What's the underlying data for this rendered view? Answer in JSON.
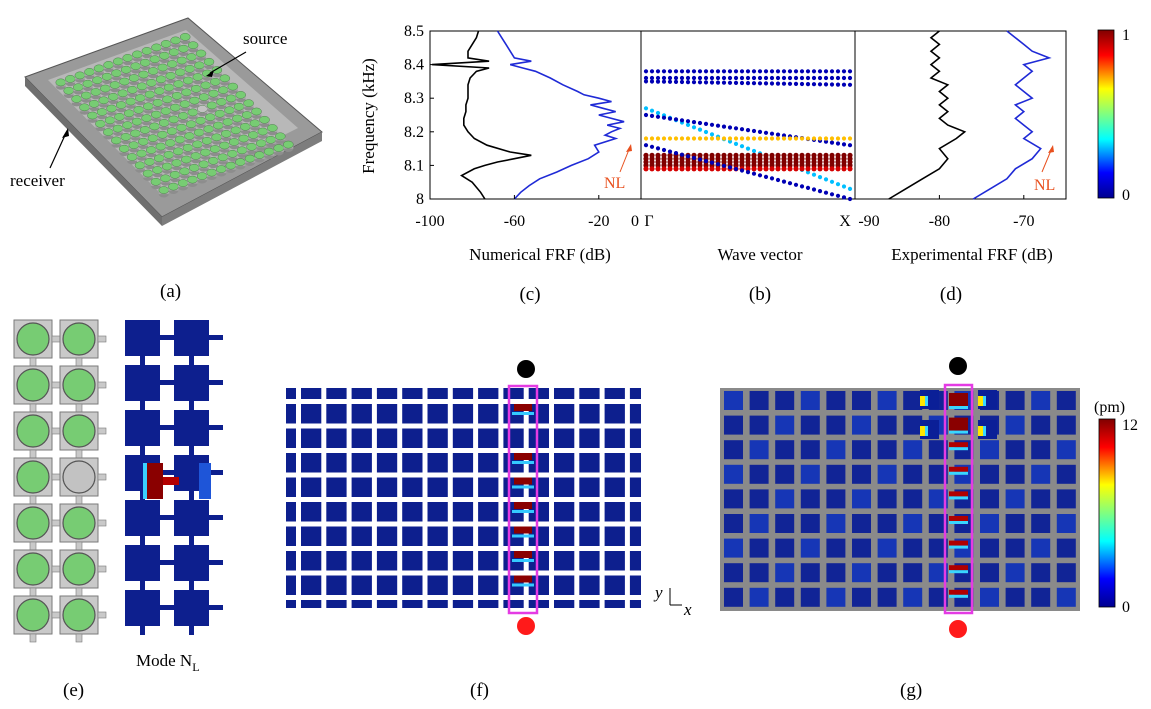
{
  "panels": {
    "a": {
      "label": "(a)",
      "source": "source",
      "receiver": "receiver"
    },
    "b": {
      "label": "(b)",
      "xlabel": "Wave vector",
      "gamma": "Γ",
      "x_point": "X"
    },
    "c": {
      "label": "(c)",
      "xlabel": "Numerical FRF (dB)",
      "ylabel": "Frequency (kHz)",
      "annotation": "NL"
    },
    "d": {
      "label": "(d)",
      "xlabel": "Experimental FRF (dB)",
      "annotation": "NL"
    },
    "e": {
      "label": "(e)",
      "mode_label": "Mode N",
      "mode_sub": "L"
    },
    "f": {
      "label": "(f)",
      "axis_y": "y",
      "axis_x": "x"
    },
    "g": {
      "label": "(g)"
    }
  },
  "colorbars": {
    "top": {
      "max": "1",
      "min": "0"
    },
    "bottom": {
      "unit": "(pm)",
      "max": "12",
      "min": "0"
    }
  },
  "colors": {
    "unit_green": "#77cc73",
    "defect_gray": "#c2c2c2",
    "field_blue": "#0d1f8e",
    "highlight_magenta": "#e43be4",
    "numerical_line": "#000000",
    "experimental_line": "#1f2ad6",
    "annotation_red": "#e8501e"
  },
  "chart_data": [
    {
      "type": "line",
      "title": "",
      "xlabel": "Numerical FRF (dB)",
      "ylabel": "Frequency (kHz)",
      "xlim": [
        -100,
        0
      ],
      "ylim": [
        8,
        8.5
      ],
      "xticks": [
        "-100",
        "-60",
        "-20",
        "0"
      ],
      "yticks": [
        "8",
        "8.1",
        "8.2",
        "8.3",
        "8.4",
        "8.5"
      ],
      "series": [
        {
          "color": "#000000",
          "y": [
            8.0,
            8.02,
            8.05,
            8.07,
            8.09,
            8.1,
            8.11,
            8.12,
            8.13,
            8.14,
            8.16,
            8.18,
            8.2,
            8.22,
            8.24,
            8.26,
            8.28,
            8.3,
            8.32,
            8.34,
            8.36,
            8.38,
            8.39,
            8.4,
            8.41,
            8.42,
            8.44,
            8.46,
            8.48,
            8.5
          ],
          "x": [
            -74,
            -76,
            -80,
            -85,
            -79,
            -74,
            -68,
            -60,
            -52,
            -62,
            -73,
            -79,
            -82,
            -84,
            -84,
            -83,
            -83,
            -82,
            -82,
            -82,
            -81,
            -78,
            -72,
            -99,
            -72,
            -82,
            -82,
            -80,
            -78,
            -77
          ]
        },
        {
          "color": "#1f2ad6",
          "y": [
            8.0,
            8.02,
            8.04,
            8.06,
            8.08,
            8.1,
            8.12,
            8.14,
            8.16,
            8.18,
            8.19,
            8.2,
            8.21,
            8.22,
            8.23,
            8.24,
            8.25,
            8.26,
            8.27,
            8.28,
            8.29,
            8.3,
            8.31,
            8.32,
            8.34,
            8.36,
            8.38,
            8.39,
            8.4,
            8.41,
            8.42,
            8.44,
            8.46,
            8.48,
            8.5
          ],
          "x": [
            -60,
            -57,
            -53,
            -48,
            -40,
            -33,
            -25,
            -20,
            -22,
            -12,
            -17,
            -14,
            -10,
            -16,
            -8,
            -14,
            -20,
            -12,
            -18,
            -24,
            -14,
            -20,
            -27,
            -30,
            -37,
            -43,
            -50,
            -56,
            -62,
            -52,
            -60,
            -62,
            -64,
            -66,
            -68
          ]
        }
      ]
    },
    {
      "type": "scatter",
      "title": "",
      "xlabel": "Wave vector",
      "xticks": [
        "Γ",
        "X"
      ],
      "xlim": [
        0,
        1
      ],
      "ylim": [
        8,
        8.5
      ],
      "colorscale": "jet",
      "colorbar": {
        "min": 0,
        "max": 1
      },
      "bands": [
        {
          "start": 8.38,
          "end": 8.38,
          "weight": 0.05
        },
        {
          "start": 8.36,
          "end": 8.36,
          "weight": 0.05
        },
        {
          "start": 8.35,
          "end": 8.34,
          "weight": 0.05
        },
        {
          "start": 8.27,
          "end": 8.03,
          "weight": 0.3
        },
        {
          "start": 8.25,
          "end": 8.16,
          "weight": 0.05
        },
        {
          "start": 8.18,
          "end": 8.18,
          "weight": 0.7
        },
        {
          "start": 8.13,
          "end": 8.13,
          "weight": 1.0
        },
        {
          "start": 8.12,
          "end": 8.12,
          "weight": 1.0
        },
        {
          "start": 8.11,
          "end": 8.11,
          "weight": 1.0
        },
        {
          "start": 8.1,
          "end": 8.1,
          "weight": 1.0
        },
        {
          "start": 8.09,
          "end": 8.09,
          "weight": 0.9
        },
        {
          "start": 8.16,
          "end": 8.0,
          "weight": 0.05
        }
      ]
    },
    {
      "type": "line",
      "title": "",
      "xlabel": "Experimental FRF (dB)",
      "xlim": [
        -90,
        -65
      ],
      "ylim": [
        8,
        8.5
      ],
      "xticks": [
        "-90",
        "-80",
        "-70"
      ],
      "series": [
        {
          "color": "#000000",
          "y": [
            8.0,
            8.03,
            8.06,
            8.09,
            8.12,
            8.15,
            8.18,
            8.2,
            8.22,
            8.24,
            8.26,
            8.28,
            8.3,
            8.32,
            8.34,
            8.36,
            8.38,
            8.4,
            8.42,
            8.44,
            8.46,
            8.48,
            8.5
          ],
          "x": [
            -86,
            -84,
            -82,
            -80,
            -79,
            -80,
            -78,
            -77,
            -79,
            -80,
            -79,
            -80,
            -79,
            -80,
            -79,
            -81,
            -80,
            -81,
            -80,
            -81,
            -80,
            -81,
            -80
          ]
        },
        {
          "color": "#1f2ad6",
          "y": [
            8.0,
            8.03,
            8.06,
            8.09,
            8.12,
            8.15,
            8.18,
            8.2,
            8.22,
            8.24,
            8.26,
            8.28,
            8.3,
            8.32,
            8.34,
            8.36,
            8.38,
            8.4,
            8.42,
            8.44,
            8.46,
            8.48,
            8.5
          ],
          "x": [
            -76,
            -74,
            -72,
            -71,
            -69,
            -68,
            -70,
            -69,
            -70,
            -71,
            -70,
            -71,
            -69,
            -70,
            -71,
            -70,
            -69,
            -70,
            -67,
            -69,
            -70,
            -71,
            -72
          ]
        }
      ]
    }
  ]
}
